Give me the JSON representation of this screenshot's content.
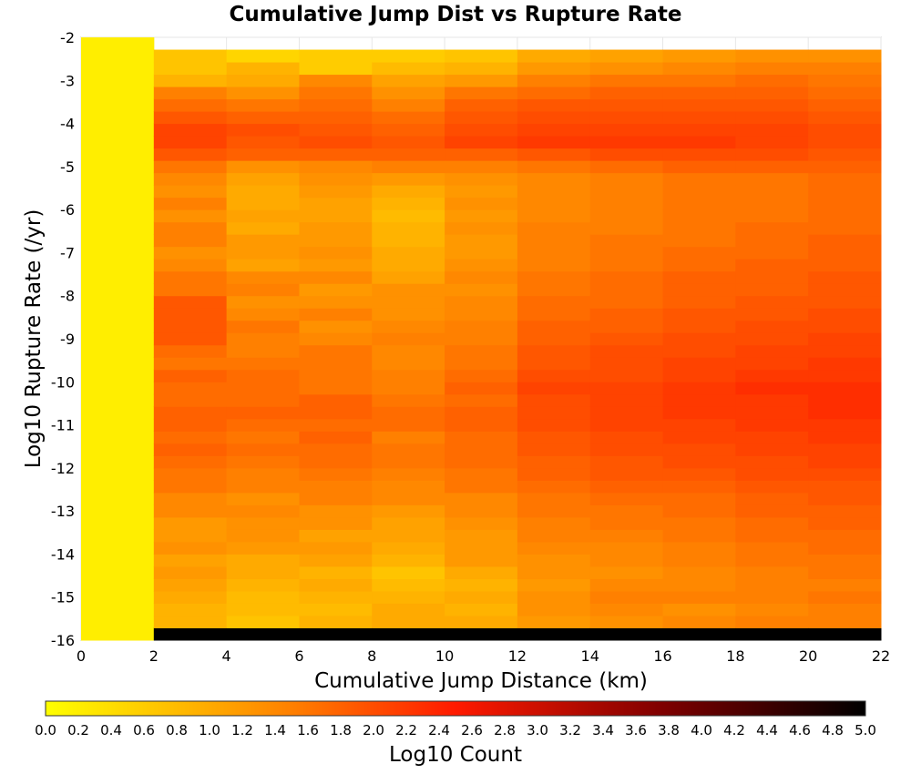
{
  "chart_data": {
    "type": "heatmap",
    "title": "Cumulative Jump Dist vs Rupture Rate",
    "xlabel": "Cumulative Jump Distance (km)",
    "ylabel": "Log10 Rupture Rate (/yr)",
    "xlim": [
      0,
      22
    ],
    "ylim": [
      -16,
      -2
    ],
    "x_ticks": [
      "0",
      "2",
      "4",
      "6",
      "8",
      "10",
      "12",
      "14",
      "16",
      "18",
      "20",
      "22"
    ],
    "y_ticks": [
      "-2",
      "-3",
      "-4",
      "-5",
      "-6",
      "-7",
      "-8",
      "-9",
      "-10",
      "-11",
      "-12",
      "-13",
      "-14",
      "-15",
      "-16"
    ],
    "grid": true,
    "x_bin_width": 2,
    "y_bin_height": 0.2857,
    "y_bin_start": -16,
    "cells": [
      [
        0.2,
        0.2,
        0.2,
        0.2,
        0.2,
        0.2,
        0.2,
        0.2,
        0.2,
        0.2,
        0.2,
        0.2,
        0.2,
        0.2,
        0.2,
        0.2,
        0.2,
        0.2,
        0.2,
        0.2,
        0.2,
        0.2,
        0.2,
        0.2,
        0.2,
        0.2,
        0.2,
        0.2,
        0.2,
        0.2,
        0.2,
        0.2,
        0.2,
        0.2,
        0.2,
        0.2,
        0.2,
        0.2,
        0.2,
        0.2,
        0.2,
        0.2,
        0.2,
        0.2,
        0.2,
        0.2,
        0.2,
        0.2,
        0.2
      ],
      [
        5.0,
        0.9,
        0.9,
        1.0,
        1.1,
        1.2,
        1.1,
        1.3,
        1.2,
        1.2,
        1.4,
        1.4,
        1.6,
        1.6,
        1.7,
        1.8,
        1.7,
        1.8,
        1.8,
        1.7,
        1.7,
        1.8,
        1.6,
        1.7,
        1.9,
        1.9,
        1.9,
        1.9,
        1.6,
        1.6,
        1.4,
        1.3,
        1.5,
        1.5,
        1.3,
        1.5,
        1.3,
        1.4,
        1.6,
        1.9,
        2.1,
        2.1,
        1.9,
        1.7,
        1.5,
        0.9,
        0.7,
        0.7,
        null
      ],
      [
        5.0,
        0.7,
        0.8,
        0.8,
        0.9,
        1.0,
        1.0,
        1.2,
        1.3,
        1.3,
        1.4,
        1.3,
        1.5,
        1.5,
        1.6,
        1.7,
        1.6,
        1.7,
        1.8,
        1.7,
        1.7,
        1.7,
        1.6,
        1.5,
        1.5,
        1.6,
        1.4,
        1.3,
        1.5,
        1.4,
        1.1,
        1.2,
        1.2,
        1.0,
        1.1,
        1.0,
        1.0,
        1.1,
        1.3,
        1.8,
        1.9,
        2.0,
        1.8,
        1.6,
        1.3,
        1.0,
        0.9,
        0.5,
        null
      ],
      [
        5.0,
        0.9,
        0.8,
        0.9,
        1.0,
        0.9,
        1.1,
        1.2,
        1.1,
        1.3,
        1.3,
        1.5,
        1.5,
        1.6,
        1.7,
        1.7,
        1.8,
        1.7,
        1.8,
        1.8,
        1.6,
        1.6,
        1.6,
        1.6,
        1.4,
        1.3,
        1.5,
        1.3,
        1.2,
        1.4,
        1.2,
        1.3,
        1.2,
        1.2,
        1.1,
        1.1,
        1.2,
        1.3,
        1.4,
        1.8,
        2.0,
        1.9,
        1.8,
        1.7,
        1.6,
        1.4,
        0.6,
        0.6,
        null
      ],
      [
        5.0,
        1.0,
        1.0,
        0.9,
        0.8,
        0.7,
        0.9,
        1.0,
        1.1,
        1.1,
        1.2,
        1.4,
        1.4,
        1.5,
        1.6,
        1.6,
        1.5,
        1.7,
        1.7,
        1.6,
        1.5,
        1.5,
        1.4,
        1.4,
        1.5,
        1.4,
        1.3,
        1.3,
        1.3,
        1.1,
        1.0,
        1.0,
        0.9,
        0.9,
        0.8,
        0.9,
        1.0,
        1.2,
        1.5,
        1.8,
        1.9,
        1.8,
        1.7,
        1.5,
        1.3,
        1.1,
        0.8,
        0.6,
        null
      ],
      [
        5.0,
        1.0,
        0.9,
        1.0,
        0.9,
        1.0,
        1.2,
        1.2,
        1.2,
        1.3,
        1.4,
        1.4,
        1.6,
        1.6,
        1.7,
        1.7,
        1.7,
        1.8,
        1.8,
        1.7,
        1.8,
        1.7,
        1.6,
        1.6,
        1.5,
        1.5,
        1.4,
        1.4,
        1.3,
        1.4,
        1.3,
        1.2,
        1.2,
        1.3,
        1.2,
        1.3,
        1.2,
        1.3,
        1.5,
        1.8,
        2.1,
        2.0,
        1.9,
        1.8,
        1.6,
        1.2,
        0.9,
        0.7,
        null
      ],
      [
        5.0,
        1.2,
        1.3,
        1.3,
        1.2,
        1.3,
        1.3,
        1.4,
        1.5,
        1.5,
        1.6,
        1.6,
        1.7,
        1.8,
        1.8,
        1.9,
        1.9,
        2.0,
        2.0,
        2.0,
        2.1,
        2.0,
        1.9,
        1.9,
        1.8,
        1.8,
        1.7,
        1.7,
        1.6,
        1.6,
        1.5,
        1.5,
        1.5,
        1.5,
        1.4,
        1.4,
        1.4,
        1.4,
        1.6,
        1.9,
        2.2,
        2.1,
        2.0,
        1.9,
        1.7,
        1.5,
        1.2,
        1.0,
        null
      ],
      [
        5.0,
        1.3,
        1.4,
        1.5,
        1.4,
        1.3,
        1.4,
        1.4,
        1.5,
        1.6,
        1.6,
        1.7,
        1.8,
        1.9,
        1.9,
        2.0,
        2.0,
        2.1,
        2.1,
        2.1,
        2.1,
        2.0,
        2.0,
        2.0,
        1.9,
        1.8,
        1.8,
        1.7,
        1.7,
        1.7,
        1.6,
        1.6,
        1.6,
        1.5,
        1.5,
        1.5,
        1.5,
        1.5,
        1.7,
        2.0,
        2.2,
        2.1,
        2.0,
        1.9,
        1.8,
        1.6,
        1.3,
        1.1,
        null
      ],
      [
        5.0,
        1.4,
        1.3,
        1.5,
        1.4,
        1.4,
        1.5,
        1.5,
        1.6,
        1.6,
        1.7,
        1.7,
        1.8,
        1.9,
        2.0,
        2.0,
        2.1,
        2.1,
        2.2,
        2.2,
        2.2,
        2.1,
        2.1,
        2.0,
        2.0,
        1.9,
        1.9,
        1.8,
        1.8,
        1.8,
        1.7,
        1.7,
        1.6,
        1.6,
        1.6,
        1.6,
        1.6,
        1.6,
        1.8,
        2.0,
        2.2,
        2.1,
        2.0,
        1.9,
        1.8,
        1.6,
        1.4,
        1.2,
        null
      ],
      [
        5.0,
        1.5,
        1.4,
        1.5,
        1.5,
        1.5,
        1.6,
        1.6,
        1.7,
        1.7,
        1.8,
        1.8,
        1.9,
        2.0,
        2.0,
        2.1,
        2.1,
        2.2,
        2.2,
        2.2,
        2.3,
        2.2,
        2.1,
        2.1,
        2.0,
        2.0,
        1.9,
        1.9,
        1.8,
        1.8,
        1.8,
        1.7,
        1.7,
        1.7,
        1.6,
        1.6,
        1.6,
        1.6,
        1.8,
        2.0,
        2.1,
        2.1,
        2.0,
        1.9,
        1.8,
        1.7,
        1.5,
        1.3,
        null
      ],
      [
        5.0,
        1.5,
        1.5,
        1.6,
        1.5,
        1.6,
        1.6,
        1.7,
        1.7,
        1.8,
        1.8,
        1.9,
        1.9,
        2.0,
        2.1,
        2.1,
        2.2,
        2.2,
        2.3,
        2.3,
        2.3,
        2.2,
        2.2,
        2.1,
        2.1,
        2.0,
        2.0,
        1.9,
        1.9,
        1.9,
        1.8,
        1.8,
        1.8,
        1.7,
        1.7,
        1.7,
        1.7,
        1.7,
        1.8,
        1.9,
        2.0,
        2.0,
        1.9,
        1.8,
        1.7,
        1.6,
        1.5,
        1.3,
        null
      ]
    ],
    "colorbar": {
      "label": "Log10 Count",
      "range": [
        0.0,
        5.0
      ],
      "ticks": [
        "0.0",
        "0.2",
        "0.4",
        "0.6",
        "0.8",
        "1.0",
        "1.2",
        "1.4",
        "1.6",
        "1.8",
        "2.0",
        "2.2",
        "2.4",
        "2.6",
        "2.8",
        "3.0",
        "3.2",
        "3.4",
        "3.6",
        "3.8",
        "4.0",
        "4.2",
        "4.4",
        "4.6",
        "4.8",
        "5.0"
      ],
      "colors": [
        "#ffff00",
        "#ff8000",
        "#ff0000",
        "#800000",
        "#000000"
      ],
      "placement": "bottom"
    }
  }
}
